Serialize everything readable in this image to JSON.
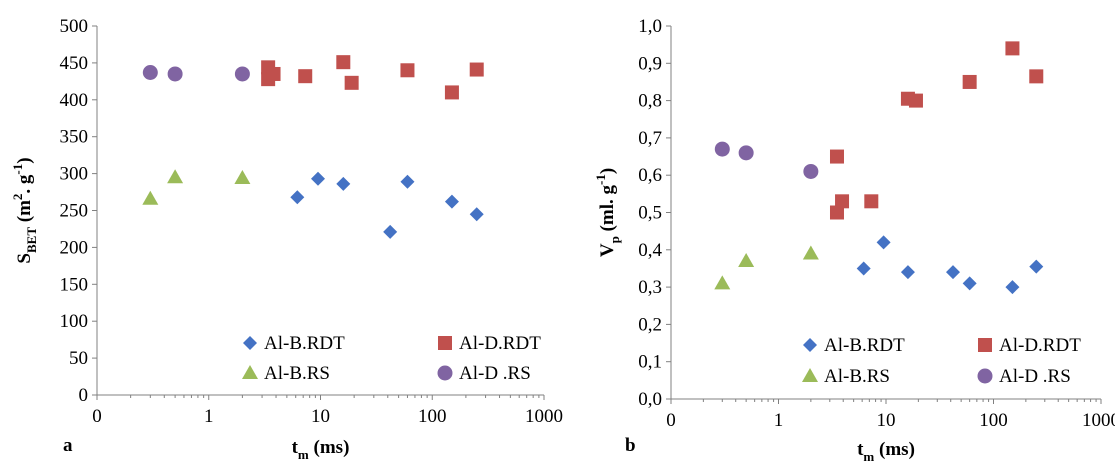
{
  "chart_data": [
    {
      "type": "scatter",
      "panel_label": "a",
      "xlabel": {
        "main": "t",
        "sub": "m",
        "rest": " (ms)"
      },
      "ylabel": {
        "main": "S",
        "sub": "BET",
        "mid": " (m",
        "sup1": "2",
        "mid2": ". g",
        "sup2": "-1",
        "end": ")"
      },
      "x_scale": "log",
      "xlim": [
        0.1,
        1000
      ],
      "ylim": [
        0,
        500
      ],
      "xticks": [
        {
          "v": 0.1,
          "label": "0"
        },
        {
          "v": 1,
          "label": "1"
        },
        {
          "v": 10,
          "label": "10"
        },
        {
          "v": 100,
          "label": "100"
        },
        {
          "v": 1000,
          "label": "1000"
        }
      ],
      "yticks": [
        {
          "v": 0,
          "label": "0"
        },
        {
          "v": 50,
          "label": "50"
        },
        {
          "v": 100,
          "label": "100"
        },
        {
          "v": 150,
          "label": "150"
        },
        {
          "v": 200,
          "label": "200"
        },
        {
          "v": 250,
          "label": "250"
        },
        {
          "v": 300,
          "label": "300"
        },
        {
          "v": 350,
          "label": "350"
        },
        {
          "v": 400,
          "label": "400"
        },
        {
          "v": 450,
          "label": "450"
        },
        {
          "v": 500,
          "label": "500"
        }
      ],
      "grid": false,
      "legend_position": "bottom-right",
      "series": [
        {
          "name": "Al-B.RDT",
          "marker": "diamond",
          "color": "#4472C4",
          "points": [
            [
              6.2,
              268
            ],
            [
              9.5,
              293
            ],
            [
              16,
              286
            ],
            [
              42,
              221
            ],
            [
              60,
              289
            ],
            [
              150,
              262
            ],
            [
              250,
              245
            ]
          ]
        },
        {
          "name": "Al-D.RDT",
          "marker": "square",
          "color": "#C0504D",
          "points": [
            [
              3.4,
              444
            ],
            [
              3.4,
              428
            ],
            [
              3.8,
              435
            ],
            [
              7.3,
              432
            ],
            [
              16,
              451
            ],
            [
              19,
              423
            ],
            [
              60,
              440
            ],
            [
              150,
              410
            ],
            [
              250,
              441
            ]
          ]
        },
        {
          "name": "Al-B.RS",
          "marker": "triangle",
          "color": "#9BBB59",
          "points": [
            [
              0.3,
              266
            ],
            [
              0.5,
              295
            ],
            [
              2,
              294
            ]
          ]
        },
        {
          "name": "Al-D .RS",
          "marker": "circle",
          "color": "#8064A2",
          "points": [
            [
              0.3,
              437
            ],
            [
              0.5,
              435
            ],
            [
              2,
              435
            ]
          ]
        }
      ]
    },
    {
      "type": "scatter",
      "panel_label": "b",
      "xlabel": {
        "main": "t",
        "sub": "m",
        "rest": " (ms)"
      },
      "ylabel": {
        "main": "V",
        "sub": "p",
        "mid": " (ml. g",
        "sup1": "-1",
        "mid2": "",
        "sup2": "",
        "end": ")"
      },
      "x_scale": "log",
      "xlim": [
        0.1,
        1000
      ],
      "ylim": [
        0,
        1.0
      ],
      "xticks": [
        {
          "v": 0.1,
          "label": "0"
        },
        {
          "v": 1,
          "label": "1"
        },
        {
          "v": 10,
          "label": "10"
        },
        {
          "v": 100,
          "label": "100"
        },
        {
          "v": 1000,
          "label": "1000"
        }
      ],
      "yticks": [
        {
          "v": 0,
          "label": "0,0"
        },
        {
          "v": 0.1,
          "label": "0,1"
        },
        {
          "v": 0.2,
          "label": "0,2"
        },
        {
          "v": 0.3,
          "label": "0,3"
        },
        {
          "v": 0.4,
          "label": "0,4"
        },
        {
          "v": 0.5,
          "label": "0,5"
        },
        {
          "v": 0.6,
          "label": "0,6"
        },
        {
          "v": 0.7,
          "label": "0,7"
        },
        {
          "v": 0.8,
          "label": "0,8"
        },
        {
          "v": 0.9,
          "label": "0,9"
        },
        {
          "v": 1.0,
          "label": "1,0"
        }
      ],
      "grid": false,
      "legend_position": "bottom-right",
      "series": [
        {
          "name": "Al-B.RDT",
          "marker": "diamond",
          "color": "#4472C4",
          "points": [
            [
              6.2,
              0.35
            ],
            [
              9.5,
              0.42
            ],
            [
              16,
              0.34
            ],
            [
              42,
              0.34
            ],
            [
              60,
              0.31
            ],
            [
              150,
              0.3
            ],
            [
              250,
              0.355
            ]
          ]
        },
        {
          "name": "Al-D.RDT",
          "marker": "square",
          "color": "#C0504D",
          "points": [
            [
              3.5,
              0.65
            ],
            [
              3.5,
              0.5
            ],
            [
              3.9,
              0.53
            ],
            [
              7.3,
              0.53
            ],
            [
              16,
              0.805
            ],
            [
              19,
              0.8
            ],
            [
              60,
              0.85
            ],
            [
              150,
              0.94
            ],
            [
              250,
              0.865
            ]
          ]
        },
        {
          "name": "Al-B.RS",
          "marker": "triangle",
          "color": "#9BBB59",
          "points": [
            [
              0.3,
              0.31
            ],
            [
              0.5,
              0.37
            ],
            [
              2,
              0.39
            ]
          ]
        },
        {
          "name": "Al-D .RS",
          "marker": "circle",
          "color": "#8064A2",
          "points": [
            [
              0.3,
              0.67
            ],
            [
              0.5,
              0.66
            ],
            [
              2,
              0.61
            ]
          ]
        }
      ]
    }
  ]
}
